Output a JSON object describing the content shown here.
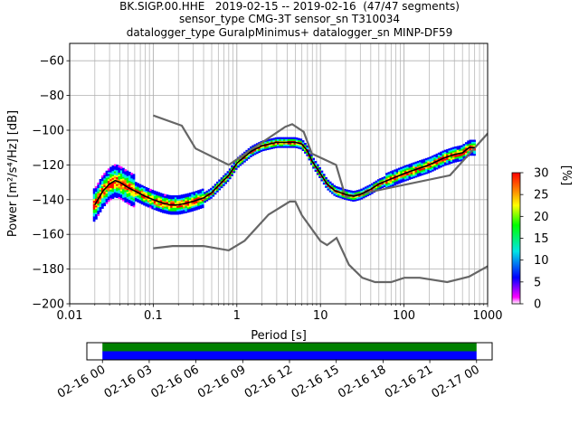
{
  "title_lines": [
    "BK.SIGP.00.HHE   2019-02-15 -- 2019-02-16  (47/47 segments)",
    "sensor_type CMG-3T sensor_sn T310034",
    "datalogger_type GuralpMinimus+ datalogger_sn MINP-DF59"
  ],
  "chart_data": [
    {
      "type": "heatmap",
      "xlabel": "Period [s]",
      "ylabel": "Power [m²/s⁴/Hz] [dB]",
      "xscale": "log",
      "xlim": [
        0.01,
        1000
      ],
      "ylim": [
        -200,
        -50
      ],
      "xticks": [
        0.01,
        0.1,
        1,
        10,
        100,
        1000
      ],
      "xtick_labels": [
        "0.01",
        "0.1",
        "1",
        "10",
        "100",
        "1000"
      ],
      "yticks": [
        -200,
        -180,
        -160,
        -140,
        -120,
        -100,
        -80,
        -60
      ],
      "ytick_labels": [
        "−200",
        "−180",
        "−160",
        "−140",
        "−120",
        "−100",
        "−80",
        "−60"
      ],
      "grid": true,
      "colorbar": {
        "label": "[%]",
        "range": [
          0,
          30
        ],
        "ticks": [
          0,
          5,
          10,
          15,
          20,
          25,
          30
        ],
        "tick_labels": [
          "0",
          "5",
          "10",
          "15",
          "20",
          "25",
          "30"
        ],
        "colors": [
          "#ffffff",
          "#ff00ff",
          "#0000ff",
          "#00e5e5",
          "#00ff00",
          "#ffff00",
          "#ff8000",
          "#ff0000"
        ]
      },
      "mode_curve": {
        "period": [
          0.02,
          0.025,
          0.03,
          0.035,
          0.04,
          0.05,
          0.06,
          0.08,
          0.1,
          0.13,
          0.16,
          0.2,
          0.25,
          0.3,
          0.4,
          0.5,
          0.6,
          0.8,
          1,
          1.5,
          2,
          3,
          4,
          5,
          6,
          7,
          8,
          10,
          12,
          15,
          20,
          25,
          30,
          40,
          50,
          70,
          100,
          150,
          200,
          300,
          400,
          500,
          600,
          700
        ],
        "power": [
          -143,
          -135,
          -131,
          -129,
          -130,
          -133,
          -135,
          -138,
          -140,
          -142,
          -143,
          -143,
          -142,
          -141,
          -139,
          -136,
          -132,
          -126,
          -119,
          -112,
          -109,
          -107,
          -107,
          -107,
          -108,
          -112,
          -118,
          -125,
          -131,
          -135,
          -137,
          -138,
          -137,
          -134,
          -131,
          -128,
          -125,
          -122,
          -120,
          -116,
          -114,
          -113,
          -110,
          -110
        ]
      },
      "noise_model_high": {
        "period": [
          0.1,
          0.22,
          0.32,
          0.8,
          3.8,
          4.6,
          6.3,
          7.9,
          15.4,
          20,
          354.8,
          10000
        ],
        "power": [
          -91.5,
          -97.4,
          -110.5,
          -120.0,
          -98.0,
          -96.5,
          -101.0,
          -113.5,
          -120.0,
          -138.5,
          -126.0,
          -48.5
        ]
      },
      "noise_model_low": {
        "period": [
          0.1,
          0.17,
          0.4,
          0.8,
          1.24,
          2.4,
          4.3,
          5.0,
          6.0,
          10.0,
          12.0,
          15.6,
          21.9,
          31.6,
          45,
          70,
          101,
          154,
          328,
          600,
          10000
        ],
        "power": [
          -168.0,
          -166.7,
          -166.7,
          -169.2,
          -163.7,
          -148.6,
          -141.1,
          -141.1,
          -149.0,
          -163.8,
          -166.2,
          -162.1,
          -177.5,
          -185.0,
          -187.5,
          -187.5,
          -185.0,
          -185.0,
          -187.5,
          -184.4,
          -151.5
        ]
      }
    },
    {
      "type": "bar",
      "xlabel": "",
      "ylabel": "",
      "x_type": "datetime",
      "xlim": [
        "2019-02-15T23:00",
        "2019-02-17T01:00"
      ],
      "xticks": [
        "2019-02-16T00:00",
        "2019-02-16T03:00",
        "2019-02-16T06:00",
        "2019-02-16T09:00",
        "2019-02-16T12:00",
        "2019-02-16T15:00",
        "2019-02-16T18:00",
        "2019-02-16T21:00",
        "2019-02-17T00:00"
      ],
      "xtick_labels": [
        "02-16 00",
        "02-16 03",
        "02-16 06",
        "02-16 09",
        "02-16 12",
        "02-16 15",
        "02-16 18",
        "02-16 21",
        "02-17 00"
      ],
      "series": [
        {
          "color": "#008000",
          "start": "2019-02-16T00:00",
          "end": "2019-02-17T00:00"
        },
        {
          "color": "#0000ff",
          "start": "2019-02-16T00:00",
          "end": "2019-02-17T00:00"
        }
      ]
    }
  ]
}
